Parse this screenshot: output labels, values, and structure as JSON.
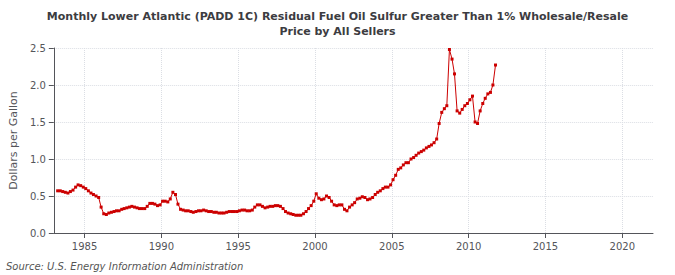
{
  "chart_data": {
    "type": "line",
    "title": "Monthly Lower Atlantic (PADD 1C) Residual Fuel Oil Sulfur Greater Than 1% Wholesale/Resale\nPrice by All Sellers",
    "ylabel": "Dollars per Gallon",
    "annotations": [
      "Source: U.S. Energy Information Administration"
    ],
    "color": "#cc0000",
    "marker": "square",
    "grid": true,
    "xlim": [
      1983,
      2022
    ],
    "xticks": [
      1985,
      1990,
      1995,
      2000,
      2005,
      2010,
      2015,
      2020
    ],
    "ylim": [
      0.0,
      2.5
    ],
    "yticks": [
      {
        "value": 0.0,
        "label": "0.0"
      },
      0.5,
      {
        "value": 1.0,
        "label": "1.0"
      },
      1.5,
      {
        "value": 2.0,
        "label": "2.0"
      },
      2.5
    ],
    "x": [
      1983.25,
      1983.42,
      1983.58,
      1983.75,
      1983.92,
      1984.08,
      1984.25,
      1984.42,
      1984.58,
      1984.75,
      1984.92,
      1985.08,
      1985.25,
      1985.42,
      1985.58,
      1985.75,
      1985.92,
      1986.08,
      1986.25,
      1986.42,
      1986.58,
      1986.75,
      1986.92,
      1987.08,
      1987.25,
      1987.42,
      1987.58,
      1987.75,
      1987.92,
      1988.08,
      1988.25,
      1988.42,
      1988.58,
      1988.75,
      1988.92,
      1989.08,
      1989.25,
      1989.42,
      1989.58,
      1989.75,
      1989.92,
      1990.08,
      1990.25,
      1990.42,
      1990.58,
      1990.75,
      1990.92,
      1991.08,
      1991.25,
      1991.42,
      1991.58,
      1991.75,
      1991.92,
      1992.08,
      1992.25,
      1992.42,
      1992.58,
      1992.75,
      1992.92,
      1993.08,
      1993.25,
      1993.42,
      1993.58,
      1993.75,
      1993.92,
      1994.08,
      1994.25,
      1994.42,
      1994.58,
      1994.75,
      1994.92,
      1995.08,
      1995.25,
      1995.42,
      1995.58,
      1995.75,
      1995.92,
      1996.08,
      1996.25,
      1996.42,
      1996.58,
      1996.75,
      1996.92,
      1997.08,
      1997.25,
      1997.42,
      1997.58,
      1997.75,
      1997.92,
      1998.08,
      1998.25,
      1998.42,
      1998.58,
      1998.75,
      1998.92,
      1999.08,
      1999.25,
      1999.42,
      1999.58,
      1999.75,
      1999.92,
      2000.08,
      2000.25,
      2000.42,
      2000.58,
      2000.75,
      2000.92,
      2001.08,
      2001.25,
      2001.42,
      2001.58,
      2001.75,
      2001.92,
      2002.08,
      2002.25,
      2002.42,
      2002.58,
      2002.75,
      2002.92,
      2003.08,
      2003.25,
      2003.42,
      2003.58,
      2003.75,
      2003.92,
      2004.08,
      2004.25,
      2004.42,
      2004.58,
      2004.75,
      2004.92,
      2005.08,
      2005.25,
      2005.42,
      2005.58,
      2005.75,
      2005.92,
      2006.08,
      2006.25,
      2006.42,
      2006.58,
      2006.75,
      2006.92,
      2007.08,
      2007.25,
      2007.42,
      2007.58,
      2007.75,
      2007.92,
      2008.08,
      2008.25,
      2008.42,
      2008.58,
      2008.75,
      2008.92,
      2009.08,
      2009.25,
      2009.42,
      2009.58,
      2009.75,
      2009.92,
      2010.08,
      2010.25,
      2010.42,
      2010.58,
      2010.75,
      2010.92,
      2011.08,
      2011.25,
      2011.42,
      2011.58,
      2011.75
    ],
    "values": [
      0.57,
      0.57,
      0.56,
      0.55,
      0.54,
      0.56,
      0.58,
      0.62,
      0.65,
      0.64,
      0.62,
      0.6,
      0.57,
      0.54,
      0.52,
      0.5,
      0.48,
      0.35,
      0.26,
      0.25,
      0.27,
      0.28,
      0.29,
      0.3,
      0.3,
      0.32,
      0.33,
      0.34,
      0.35,
      0.36,
      0.35,
      0.34,
      0.33,
      0.33,
      0.33,
      0.36,
      0.4,
      0.4,
      0.39,
      0.37,
      0.38,
      0.43,
      0.43,
      0.42,
      0.46,
      0.55,
      0.52,
      0.39,
      0.32,
      0.31,
      0.3,
      0.3,
      0.29,
      0.28,
      0.29,
      0.3,
      0.3,
      0.31,
      0.3,
      0.29,
      0.29,
      0.28,
      0.28,
      0.27,
      0.27,
      0.27,
      0.28,
      0.29,
      0.29,
      0.29,
      0.29,
      0.3,
      0.31,
      0.31,
      0.3,
      0.3,
      0.31,
      0.35,
      0.38,
      0.38,
      0.36,
      0.34,
      0.35,
      0.36,
      0.36,
      0.37,
      0.37,
      0.36,
      0.33,
      0.29,
      0.27,
      0.26,
      0.25,
      0.24,
      0.24,
      0.24,
      0.26,
      0.29,
      0.33,
      0.37,
      0.43,
      0.53,
      0.47,
      0.45,
      0.46,
      0.5,
      0.48,
      0.43,
      0.38,
      0.37,
      0.38,
      0.38,
      0.32,
      0.3,
      0.35,
      0.38,
      0.41,
      0.46,
      0.47,
      0.49,
      0.48,
      0.45,
      0.46,
      0.48,
      0.52,
      0.55,
      0.57,
      0.6,
      0.62,
      0.62,
      0.65,
      0.72,
      0.78,
      0.86,
      0.88,
      0.92,
      0.95,
      0.95,
      1.0,
      1.02,
      1.05,
      1.08,
      1.1,
      1.12,
      1.15,
      1.17,
      1.19,
      1.22,
      1.27,
      1.48,
      1.63,
      1.68,
      1.72,
      2.48,
      2.35,
      2.15,
      1.65,
      1.62,
      1.67,
      1.72,
      1.75,
      1.8,
      1.85,
      1.5,
      1.48,
      1.65,
      1.75,
      1.82,
      1.88,
      1.9,
      2.0,
      2.27
    ]
  }
}
